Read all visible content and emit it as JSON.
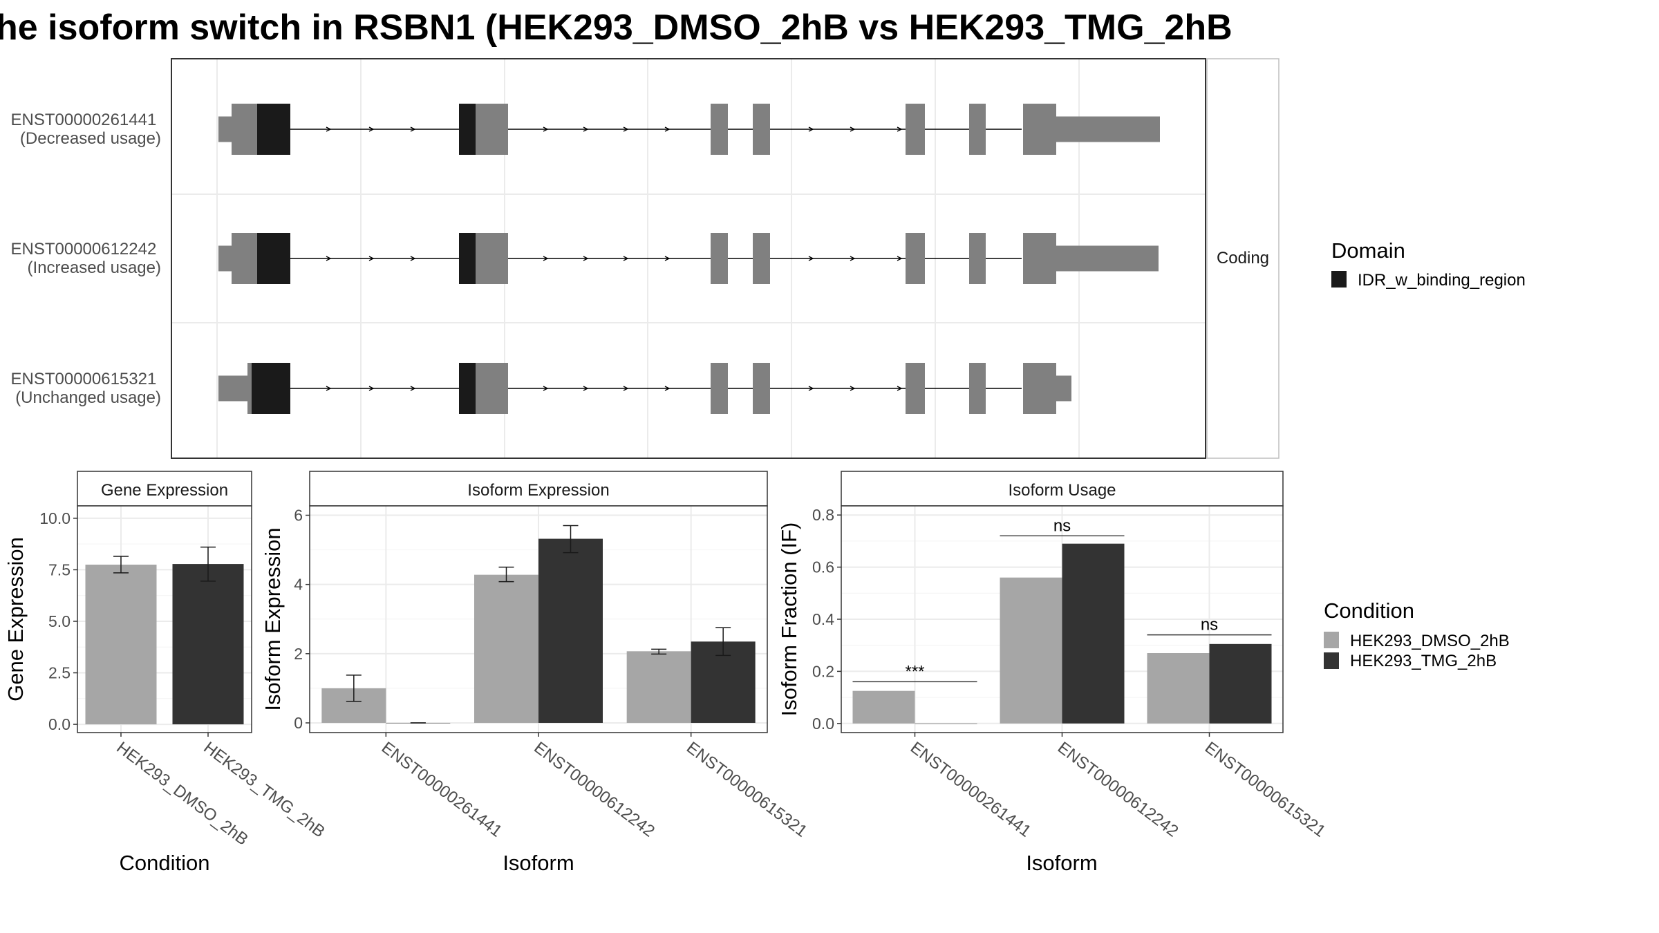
{
  "title": "he isoform switch in RSBN1 (HEK293_DMSO_2hB vs HEK293_TMG_2hB",
  "colors": {
    "exon": "#808080",
    "domain": "#1a1a1a",
    "dmso": "#a6a6a6",
    "tmg": "#333333",
    "panel_border": "#333333",
    "grid": "#ebebeb",
    "strip_border": "#bfbfbf"
  },
  "structure": {
    "strip_label": "Coding",
    "transcripts": [
      {
        "id": "ENST00000261441",
        "usage": "(Decreased usage)"
      },
      {
        "id": "ENST00000612242",
        "usage": "(Increased usage)"
      },
      {
        "id": "ENST00000615321",
        "usage": "(Unchanged usage)"
      }
    ],
    "domain_legend": {
      "title": "Domain",
      "items": [
        "IDR_w_binding_region"
      ]
    }
  },
  "condition_legend": {
    "title": "Condition",
    "items": [
      "HEK293_DMSO_2hB",
      "HEK293_TMG_2hB"
    ]
  },
  "chart_data": [
    {
      "type": "bar",
      "panel_title": "Gene Expression",
      "xlabel": "Condition",
      "ylabel": "Gene Expression",
      "categories": [
        "HEK293_DMSO_2hB",
        "HEK293_TMG_2hB"
      ],
      "values": [
        7.75,
        7.78
      ],
      "error": [
        [
          7.35,
          8.15
        ],
        [
          6.95,
          8.6
        ]
      ],
      "ylim": [
        -0.4,
        10.6
      ],
      "yticks": [
        "0.0",
        "2.5",
        "5.0",
        "7.5",
        "10.0"
      ],
      "grid": true
    },
    {
      "type": "bar",
      "panel_title": "Isoform Expression",
      "xlabel": "Isoform",
      "ylabel": "Isoform Expression",
      "categories": [
        "ENST00000261441",
        "ENST00000612242",
        "ENST00000615321"
      ],
      "series": [
        {
          "name": "HEK293_DMSO_2hB",
          "values": [
            1.0,
            4.28,
            2.07
          ],
          "error": [
            [
              0.62,
              1.38
            ],
            [
              4.08,
              4.5
            ],
            [
              1.99,
              2.13
            ]
          ]
        },
        {
          "name": "HEK293_TMG_2hB",
          "values": [
            0.0,
            5.32,
            2.35
          ],
          "error": [
            [
              0.0,
              0.0
            ],
            [
              4.92,
              5.7
            ],
            [
              1.95,
              2.75
            ]
          ]
        }
      ],
      "ylim": [
        -0.28,
        6.27
      ],
      "yticks": [
        "0",
        "2",
        "4",
        "6"
      ],
      "grid": true
    },
    {
      "type": "bar",
      "panel_title": "Isoform Usage",
      "xlabel": "Isoform",
      "ylabel": "Isoform Fraction (IF)",
      "categories": [
        "ENST00000261441",
        "ENST00000612242",
        "ENST00000615321"
      ],
      "series": [
        {
          "name": "HEK293_DMSO_2hB",
          "values": [
            0.125,
            0.56,
            0.27
          ]
        },
        {
          "name": "HEK293_TMG_2hB",
          "values": [
            0.0,
            0.69,
            0.305
          ]
        }
      ],
      "significance": [
        {
          "category": "ENST00000261441",
          "label": "***",
          "y": 0.16
        },
        {
          "category": "ENST00000612242",
          "label": "ns",
          "y": 0.72
        },
        {
          "category": "ENST00000615321",
          "label": "ns",
          "y": 0.34
        }
      ],
      "ylim": [
        -0.035,
        0.835
      ],
      "yticks": [
        "0.0",
        "0.2",
        "0.4",
        "0.6",
        "0.8"
      ],
      "grid": true
    }
  ]
}
